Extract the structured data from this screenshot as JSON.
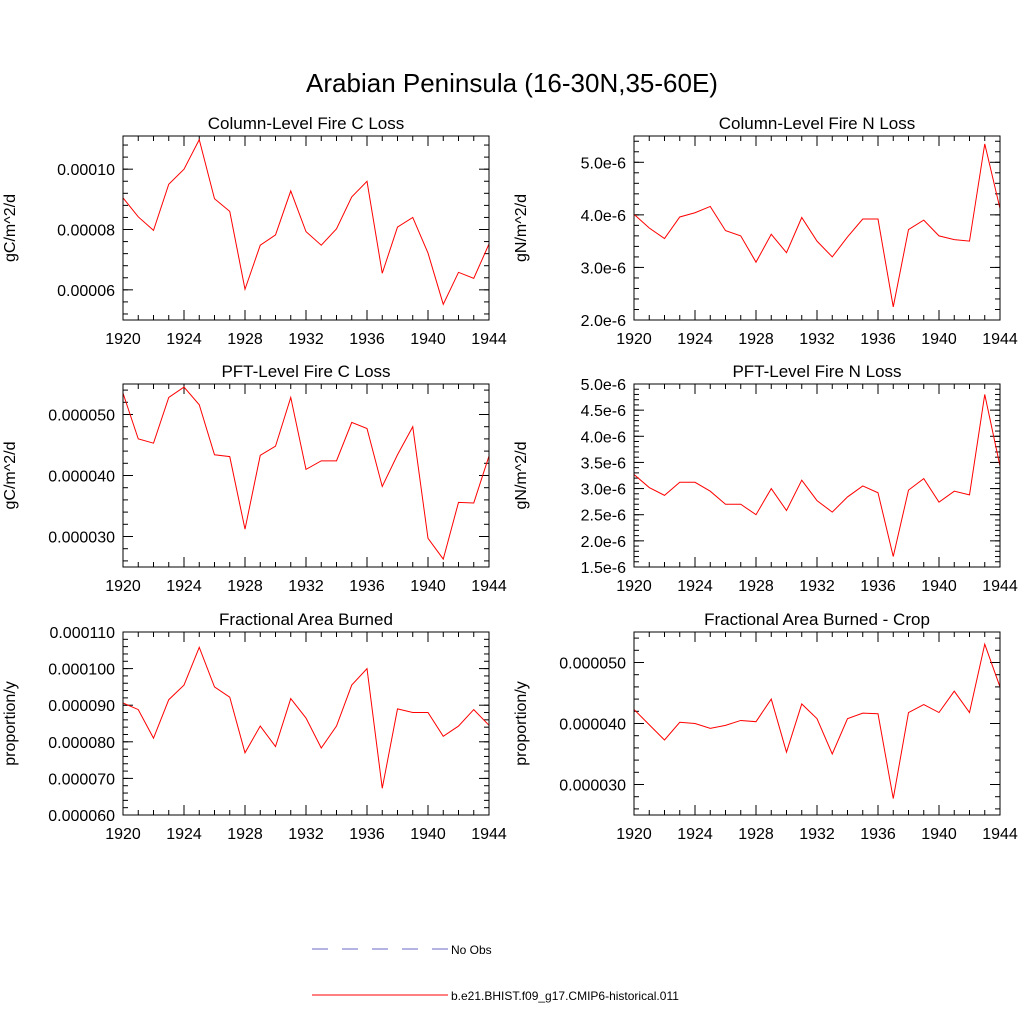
{
  "page": {
    "title": "Arabian Peninsula (16-30N,35-60E)"
  },
  "legend": [
    {
      "label": "No Obs",
      "color": "#6a6ac8",
      "dash": true
    },
    {
      "label": "b.e21.BHIST.f09_g17.CMIP6-historical.011",
      "color": "#ff0000",
      "dash": false
    }
  ],
  "chart_data": [
    {
      "type": "line",
      "title": "Column-Level Fire C Loss",
      "ylabel": "gC/m^2/d",
      "xlim": [
        1920,
        1944
      ],
      "ylim": [
        5e-05,
        0.000111
      ],
      "xticks": [
        1920,
        1924,
        1928,
        1932,
        1936,
        1940,
        1944
      ],
      "xtick_labels": [
        "1920",
        "1924",
        "1928",
        "1932",
        "1936",
        "1940",
        "1944"
      ],
      "yticks": [
        6e-05,
        8e-05,
        0.0001
      ],
      "ytick_labels": [
        "0.00006",
        "0.00008",
        "0.00010"
      ],
      "x": [
        1920,
        1921,
        1922,
        1923,
        1924,
        1925,
        1926,
        1927,
        1928,
        1929,
        1930,
        1931,
        1932,
        1933,
        1934,
        1935,
        1936,
        1937,
        1938,
        1939,
        1940,
        1941,
        1942,
        1943,
        1944
      ],
      "series": [
        {
          "color": "#ff0000",
          "values": [
            9.05e-05,
            8.42e-05,
            7.97e-05,
            9.5e-05,
            0.0001,
            0.0001098,
            9.02e-05,
            8.6e-05,
            6.02e-05,
            7.48e-05,
            7.82e-05,
            9.28e-05,
            7.93e-05,
            7.48e-05,
            8.02e-05,
            9.08e-05,
            9.6e-05,
            6.55e-05,
            8.08e-05,
            8.4e-05,
            7.22e-05,
            5.52e-05,
            6.58e-05,
            6.38e-05,
            7.52e-05
          ]
        }
      ]
    },
    {
      "type": "line",
      "title": "Column-Level Fire N Loss",
      "ylabel": "gN/m^2/d",
      "xlim": [
        1920,
        1944
      ],
      "ylim": [
        2e-06,
        5.5e-06
      ],
      "xticks": [
        1920,
        1924,
        1928,
        1932,
        1936,
        1940,
        1944
      ],
      "xtick_labels": [
        "1920",
        "1924",
        "1928",
        "1932",
        "1936",
        "1940",
        "1944"
      ],
      "yticks": [
        2e-06,
        3e-06,
        4e-06,
        5e-06
      ],
      "ytick_labels": [
        "2.0e-6",
        "3.0e-6",
        "4.0e-6",
        "5.0e-6"
      ],
      "x": [
        1920,
        1921,
        1922,
        1923,
        1924,
        1925,
        1926,
        1927,
        1928,
        1929,
        1930,
        1931,
        1932,
        1933,
        1934,
        1935,
        1936,
        1937,
        1938,
        1939,
        1940,
        1941,
        1942,
        1943,
        1944
      ],
      "series": [
        {
          "color": "#ff0000",
          "values": [
            4.01e-06,
            3.75e-06,
            3.55e-06,
            3.96e-06,
            4.04e-06,
            4.16e-06,
            3.7e-06,
            3.6e-06,
            3.1e-06,
            3.63e-06,
            3.28e-06,
            3.95e-06,
            3.5e-06,
            3.2e-06,
            3.58e-06,
            3.92e-06,
            3.92e-06,
            2.25e-06,
            3.72e-06,
            3.9e-06,
            3.6e-06,
            3.53e-06,
            3.5e-06,
            5.35e-06,
            4.12e-06
          ]
        }
      ]
    },
    {
      "type": "line",
      "title": "PFT-Level Fire C Loss",
      "ylabel": "gC/m^2/d",
      "xlim": [
        1920,
        1944
      ],
      "ylim": [
        2.5e-05,
        5.5e-05
      ],
      "xticks": [
        1920,
        1924,
        1928,
        1932,
        1936,
        1940,
        1944
      ],
      "xtick_labels": [
        "1920",
        "1924",
        "1928",
        "1932",
        "1936",
        "1940",
        "1944"
      ],
      "yticks": [
        3e-05,
        4e-05,
        5e-05
      ],
      "ytick_labels": [
        "0.000030",
        "0.000040",
        "0.000050"
      ],
      "x": [
        1920,
        1921,
        1922,
        1923,
        1924,
        1925,
        1926,
        1927,
        1928,
        1929,
        1930,
        1931,
        1932,
        1933,
        1934,
        1935,
        1936,
        1937,
        1938,
        1939,
        1940,
        1941,
        1942,
        1943,
        1944
      ],
      "series": [
        {
          "color": "#ff0000",
          "values": [
            5.35e-05,
            4.6e-05,
            4.53e-05,
            5.28e-05,
            5.45e-05,
            5.16e-05,
            4.34e-05,
            4.31e-05,
            3.12e-05,
            4.33e-05,
            4.48e-05,
            5.28e-05,
            4.1e-05,
            4.24e-05,
            4.24e-05,
            4.87e-05,
            4.77e-05,
            3.82e-05,
            4.34e-05,
            4.8e-05,
            2.97e-05,
            2.63e-05,
            3.56e-05,
            3.55e-05,
            4.32e-05
          ]
        }
      ]
    },
    {
      "type": "line",
      "title": "PFT-Level Fire N Loss",
      "ylabel": "gN/m^2/d",
      "xlim": [
        1920,
        1944
      ],
      "ylim": [
        1.5e-06,
        5e-06
      ],
      "xticks": [
        1920,
        1924,
        1928,
        1932,
        1936,
        1940,
        1944
      ],
      "xtick_labels": [
        "1920",
        "1924",
        "1928",
        "1932",
        "1936",
        "1940",
        "1944"
      ],
      "yticks": [
        1.5e-06,
        2e-06,
        2.5e-06,
        3e-06,
        3.5e-06,
        4e-06,
        4.5e-06,
        5e-06
      ],
      "ytick_labels": [
        "1.5e-6",
        "2.0e-6",
        "2.5e-6",
        "3.0e-6",
        "3.5e-6",
        "4.0e-6",
        "4.5e-6",
        "5.0e-6"
      ],
      "x": [
        1920,
        1921,
        1922,
        1923,
        1924,
        1925,
        1926,
        1927,
        1928,
        1929,
        1930,
        1931,
        1932,
        1933,
        1934,
        1935,
        1936,
        1937,
        1938,
        1939,
        1940,
        1941,
        1942,
        1943,
        1944
      ],
      "series": [
        {
          "color": "#ff0000",
          "values": [
            3.27e-06,
            3.02e-06,
            2.87e-06,
            3.12e-06,
            3.12e-06,
            2.95e-06,
            2.7e-06,
            2.7e-06,
            2.5e-06,
            3e-06,
            2.58e-06,
            3.16e-06,
            2.77e-06,
            2.55e-06,
            2.84e-06,
            3.05e-06,
            2.92e-06,
            1.7e-06,
            2.97e-06,
            3.19e-06,
            2.74e-06,
            2.95e-06,
            2.88e-06,
            4.8e-06,
            3.43e-06
          ]
        }
      ]
    },
    {
      "type": "line",
      "title": "Fractional Area Burned",
      "ylabel": "proportion/y",
      "xlim": [
        1920,
        1944
      ],
      "ylim": [
        6e-05,
        0.00011
      ],
      "xticks": [
        1920,
        1924,
        1928,
        1932,
        1936,
        1940,
        1944
      ],
      "xtick_labels": [
        "1920",
        "1924",
        "1928",
        "1932",
        "1936",
        "1940",
        "1944"
      ],
      "yticks": [
        6e-05,
        7e-05,
        8e-05,
        9e-05,
        0.0001,
        0.00011
      ],
      "ytick_labels": [
        "0.000060",
        "0.000070",
        "0.000080",
        "0.000090",
        "0.000100",
        "0.000110"
      ],
      "x": [
        1920,
        1921,
        1922,
        1923,
        1924,
        1925,
        1926,
        1927,
        1928,
        1929,
        1930,
        1931,
        1932,
        1933,
        1934,
        1935,
        1936,
        1937,
        1938,
        1939,
        1940,
        1941,
        1942,
        1943,
        1944
      ],
      "series": [
        {
          "color": "#ff0000",
          "values": [
            9.06e-05,
            8.88e-05,
            8.1e-05,
            9.15e-05,
            9.55e-05,
            0.0001058,
            9.5e-05,
            9.22e-05,
            7.7e-05,
            8.43e-05,
            7.87e-05,
            9.18e-05,
            8.65e-05,
            7.83e-05,
            8.43e-05,
            9.55e-05,
            0.0001,
            6.73e-05,
            8.9e-05,
            8.8e-05,
            8.8e-05,
            8.15e-05,
            8.43e-05,
            8.88e-05,
            8.45e-05
          ]
        }
      ]
    },
    {
      "type": "line",
      "title": "Fractional Area Burned - Crop",
      "ylabel": "proportion/y",
      "xlim": [
        1920,
        1944
      ],
      "ylim": [
        2.5e-05,
        5.5e-05
      ],
      "xticks": [
        1920,
        1924,
        1928,
        1932,
        1936,
        1940,
        1944
      ],
      "xtick_labels": [
        "1920",
        "1924",
        "1928",
        "1932",
        "1936",
        "1940",
        "1944"
      ],
      "yticks": [
        3e-05,
        4e-05,
        5e-05
      ],
      "ytick_labels": [
        "0.000030",
        "0.000040",
        "0.000050"
      ],
      "x": [
        1920,
        1921,
        1922,
        1923,
        1924,
        1925,
        1926,
        1927,
        1928,
        1929,
        1930,
        1931,
        1932,
        1933,
        1934,
        1935,
        1936,
        1937,
        1938,
        1939,
        1940,
        1941,
        1942,
        1943,
        1944
      ],
      "series": [
        {
          "color": "#ff0000",
          "values": [
            4.23e-05,
            3.98e-05,
            3.73e-05,
            4.02e-05,
            4e-05,
            3.92e-05,
            3.97e-05,
            4.05e-05,
            4.03e-05,
            4.4e-05,
            3.53e-05,
            4.32e-05,
            4.08e-05,
            3.5e-05,
            4.08e-05,
            4.17e-05,
            4.16e-05,
            2.77e-05,
            4.18e-05,
            4.31e-05,
            4.18e-05,
            4.53e-05,
            4.18e-05,
            5.3e-05,
            4.6e-05
          ]
        }
      ]
    }
  ]
}
